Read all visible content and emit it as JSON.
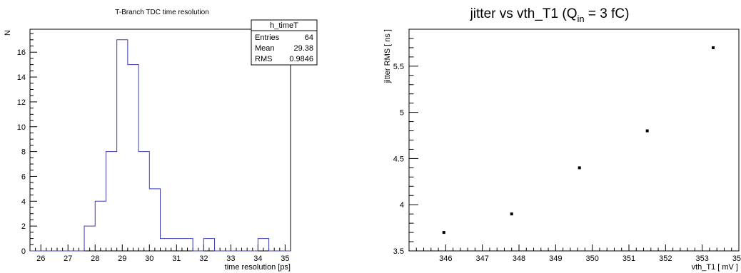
{
  "chart_data": [
    {
      "type": "bar",
      "style": "histogram-step",
      "title": "T-Branch TDC time resolution",
      "xlabel": "time resolution [ps]",
      "ylabel": "N",
      "xlim": [
        25.6,
        35.2
      ],
      "ylim": [
        0,
        17.85
      ],
      "bin_width": 0.4,
      "bin_low_edges": [
        27.6,
        28.0,
        28.4,
        28.8,
        29.2,
        29.6,
        30.0,
        30.4,
        30.8,
        31.2,
        31.6,
        32.0,
        32.4,
        32.8,
        33.2,
        33.6,
        34.0,
        34.4
      ],
      "values": [
        2,
        4,
        8,
        17,
        15,
        8,
        5,
        1,
        1,
        1,
        0,
        1,
        0,
        0,
        0,
        0,
        1,
        0
      ],
      "x_ticks": [
        26,
        27,
        28,
        29,
        30,
        31,
        32,
        33,
        34,
        35
      ],
      "y_ticks": [
        0,
        2,
        4,
        6,
        8,
        10,
        12,
        14,
        16
      ],
      "line_color": "#3b3bb3",
      "grid": false,
      "stats_box": {
        "name": "h_timeT",
        "rows": [
          {
            "label": "Entries",
            "value": "64"
          },
          {
            "label": "Mean",
            "value": "29.38"
          },
          {
            "label": "RMS",
            "value": "0.9846"
          }
        ],
        "placement": "top-right"
      }
    },
    {
      "type": "scatter",
      "title_main": "jitter vs vth_T1 (Q",
      "title_sub": "in",
      "title_tail": " = 3 fC)",
      "xlabel": "vth_T1 [ mV ]",
      "ylabel": "jitter RMS [ ns ]",
      "xlim": [
        345.0,
        354.0
      ],
      "ylim": [
        3.5,
        5.9
      ],
      "x": [
        345.95,
        347.8,
        349.65,
        351.5,
        353.3
      ],
      "y": [
        3.7,
        3.9,
        4.4,
        4.8,
        5.7
      ],
      "x_ticks": [
        346,
        347,
        348,
        349,
        350,
        351,
        352,
        353,
        354
      ],
      "y_ticks": [
        "3.5",
        "4",
        "4.5",
        "5",
        "5.5"
      ],
      "marker_color": "#000000",
      "grid": false
    }
  ]
}
